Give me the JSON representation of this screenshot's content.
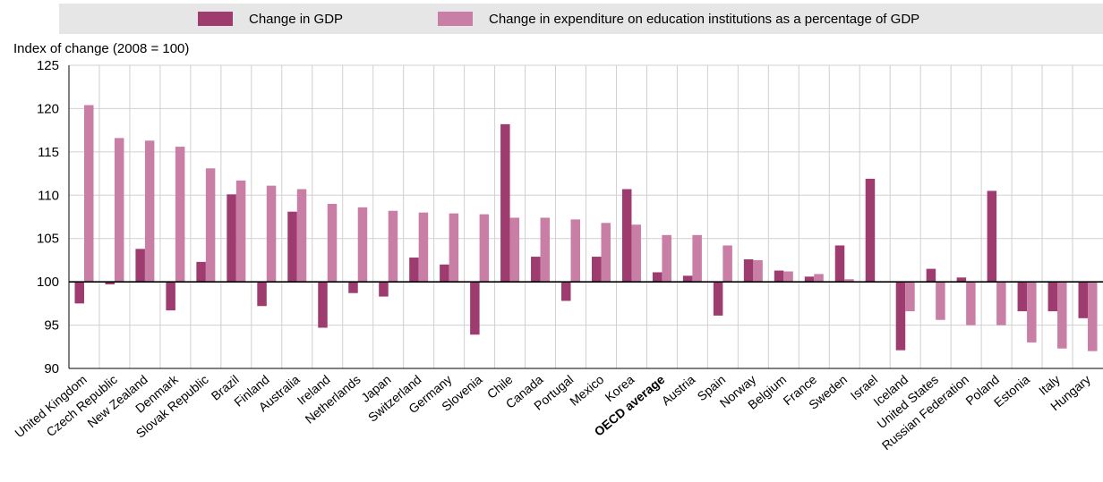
{
  "colors": {
    "gdp": "#9e3c6f",
    "expenditure": "#c97ea6",
    "grid": "#d0d0d0",
    "legend_bg": "#e6e6e6"
  },
  "legend": {
    "gdp_label": "Change in GDP",
    "expenditure_label": "Change in expenditure on education institutions as a percentage of GDP"
  },
  "chart_data": {
    "type": "bar",
    "title": "",
    "xlabel": "",
    "ylabel": "Index of change (2008 = 100)",
    "ylim": [
      90,
      125
    ],
    "yticks": [
      90,
      95,
      100,
      105,
      110,
      115,
      120,
      125
    ],
    "baseline": 100,
    "grid": true,
    "legend_position": "top",
    "highlight_category": "OECD average",
    "categories": [
      "United Kingdom",
      "Czech Republic",
      "New Zealand",
      "Denmark",
      "Slovak Republic",
      "Brazil",
      "Finland",
      "Australia",
      "Ireland",
      "Netherlands",
      "Japan",
      "Switzerland",
      "Germany",
      "Slovenia",
      "Chile",
      "Canada",
      "Portugal",
      "Mexico",
      "Korea",
      "OECD average",
      "Austria",
      "Spain",
      "Norway",
      "Belgium",
      "France",
      "Sweden",
      "Israel",
      "Iceland",
      "United States",
      "Russian Federation",
      "Poland",
      "Estonia",
      "Italy",
      "Hungary"
    ],
    "series": [
      {
        "name": "Change in GDP",
        "values": [
          97.5,
          99.7,
          103.8,
          96.7,
          102.3,
          110.1,
          97.2,
          108.1,
          94.7,
          98.7,
          98.3,
          102.8,
          102.0,
          93.9,
          118.2,
          102.9,
          97.8,
          102.9,
          110.7,
          101.1,
          100.7,
          96.1,
          102.6,
          101.3,
          100.6,
          104.2,
          111.9,
          92.1,
          101.5,
          100.5,
          110.5,
          96.6,
          96.6,
          95.8
        ]
      },
      {
        "name": "Change in expenditure on education institutions as a percentage of GDP",
        "values": [
          120.4,
          116.6,
          116.3,
          115.6,
          113.1,
          111.7,
          111.1,
          110.7,
          109.0,
          108.6,
          108.2,
          108.0,
          107.9,
          107.8,
          107.4,
          107.4,
          107.2,
          106.8,
          106.6,
          105.4,
          105.4,
          104.2,
          102.5,
          101.2,
          100.9,
          100.3,
          100.0,
          96.6,
          95.6,
          95.0,
          95.0,
          93.0,
          92.3,
          92.0
        ]
      }
    ]
  }
}
